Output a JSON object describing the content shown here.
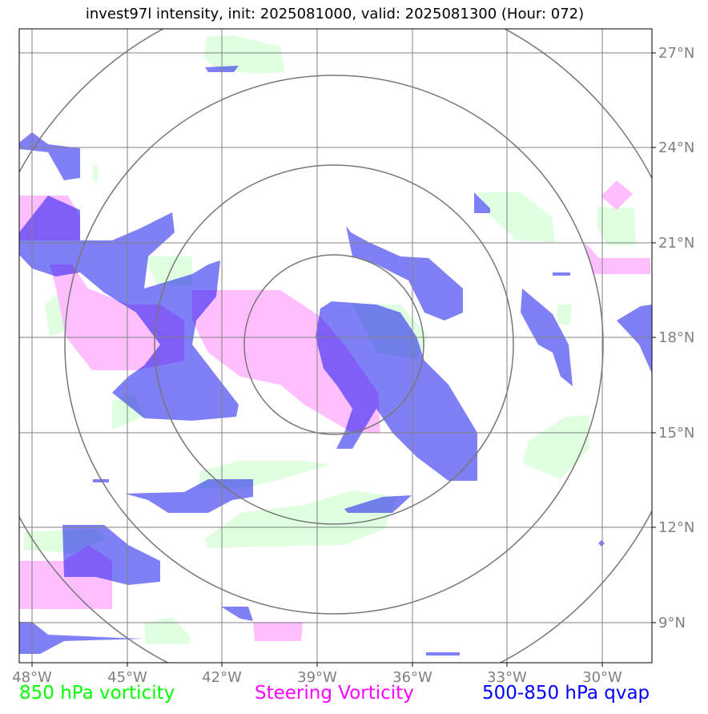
{
  "title": "invest97l intensity, init: 2025081000, valid: 2025081300 (Hour: 072)",
  "colors": {
    "vorticity": "#00ff00",
    "steering": "#ff00ff",
    "qvap": "#0000ff",
    "grid": "#808080",
    "rings": "#777777"
  },
  "axes": {
    "lon_ticks": [
      "48°W",
      "45°W",
      "42°W",
      "39°W",
      "36°W",
      "33°W",
      "30°W"
    ],
    "lat_ticks": [
      "27°N",
      "24°N",
      "21°N",
      "18°N",
      "15°N",
      "12°N",
      "9°N"
    ]
  },
  "legend": {
    "vorticity": "850 hPa vorticity",
    "steering": "Steering Vorticity",
    "qvap": "500-850 hPa qvap"
  }
}
